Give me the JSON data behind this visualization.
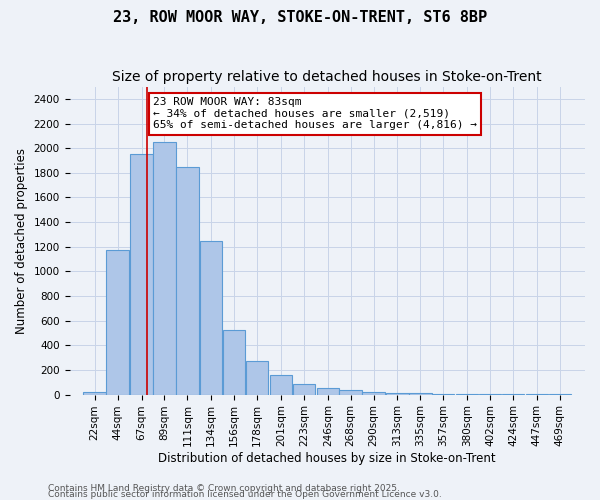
{
  "title1": "23, ROW MOOR WAY, STOKE-ON-TRENT, ST6 8BP",
  "title2": "Size of property relative to detached houses in Stoke-on-Trent",
  "xlabel": "Distribution of detached houses by size in Stoke-on-Trent",
  "ylabel": "Number of detached properties",
  "bin_labels": [
    "22sqm",
    "44sqm",
    "67sqm",
    "89sqm",
    "111sqm",
    "134sqm",
    "156sqm",
    "178sqm",
    "201sqm",
    "223sqm",
    "246sqm",
    "268sqm",
    "290sqm",
    "313sqm",
    "335sqm",
    "357sqm",
    "380sqm",
    "402sqm",
    "424sqm",
    "447sqm",
    "469sqm"
  ],
  "bin_edges": [
    22,
    44,
    67,
    89,
    111,
    134,
    156,
    178,
    201,
    223,
    246,
    268,
    290,
    313,
    335,
    357,
    380,
    402,
    424,
    447,
    469
  ],
  "bar_heights": [
    25,
    1175,
    1950,
    2050,
    1850,
    1250,
    525,
    270,
    155,
    90,
    50,
    40,
    20,
    15,
    10,
    5,
    5,
    5,
    5,
    5,
    2
  ],
  "bar_color": "#aec6e8",
  "bar_edge_color": "#5b9bd5",
  "bar_edge_width": 0.8,
  "grid_color": "#c8d4e8",
  "bg_color": "#eef2f8",
  "red_line_x": 83,
  "annotation_text": "23 ROW MOOR WAY: 83sqm\n← 34% of detached houses are smaller (2,519)\n65% of semi-detached houses are larger (4,816) →",
  "annotation_box_color": "#ffffff",
  "annotation_box_edge_color": "#cc0000",
  "ylim": [
    0,
    2500
  ],
  "yticks": [
    0,
    200,
    400,
    600,
    800,
    1000,
    1200,
    1400,
    1600,
    1800,
    2000,
    2200,
    2400
  ],
  "footnote1": "Contains HM Land Registry data © Crown copyright and database right 2025.",
  "footnote2": "Contains public sector information licensed under the Open Government Licence v3.0.",
  "title1_fontsize": 11,
  "title2_fontsize": 10,
  "axis_fontsize": 8.5,
  "tick_fontsize": 7.5,
  "annotation_fontsize": 8.0,
  "footnote_fontsize": 6.5
}
